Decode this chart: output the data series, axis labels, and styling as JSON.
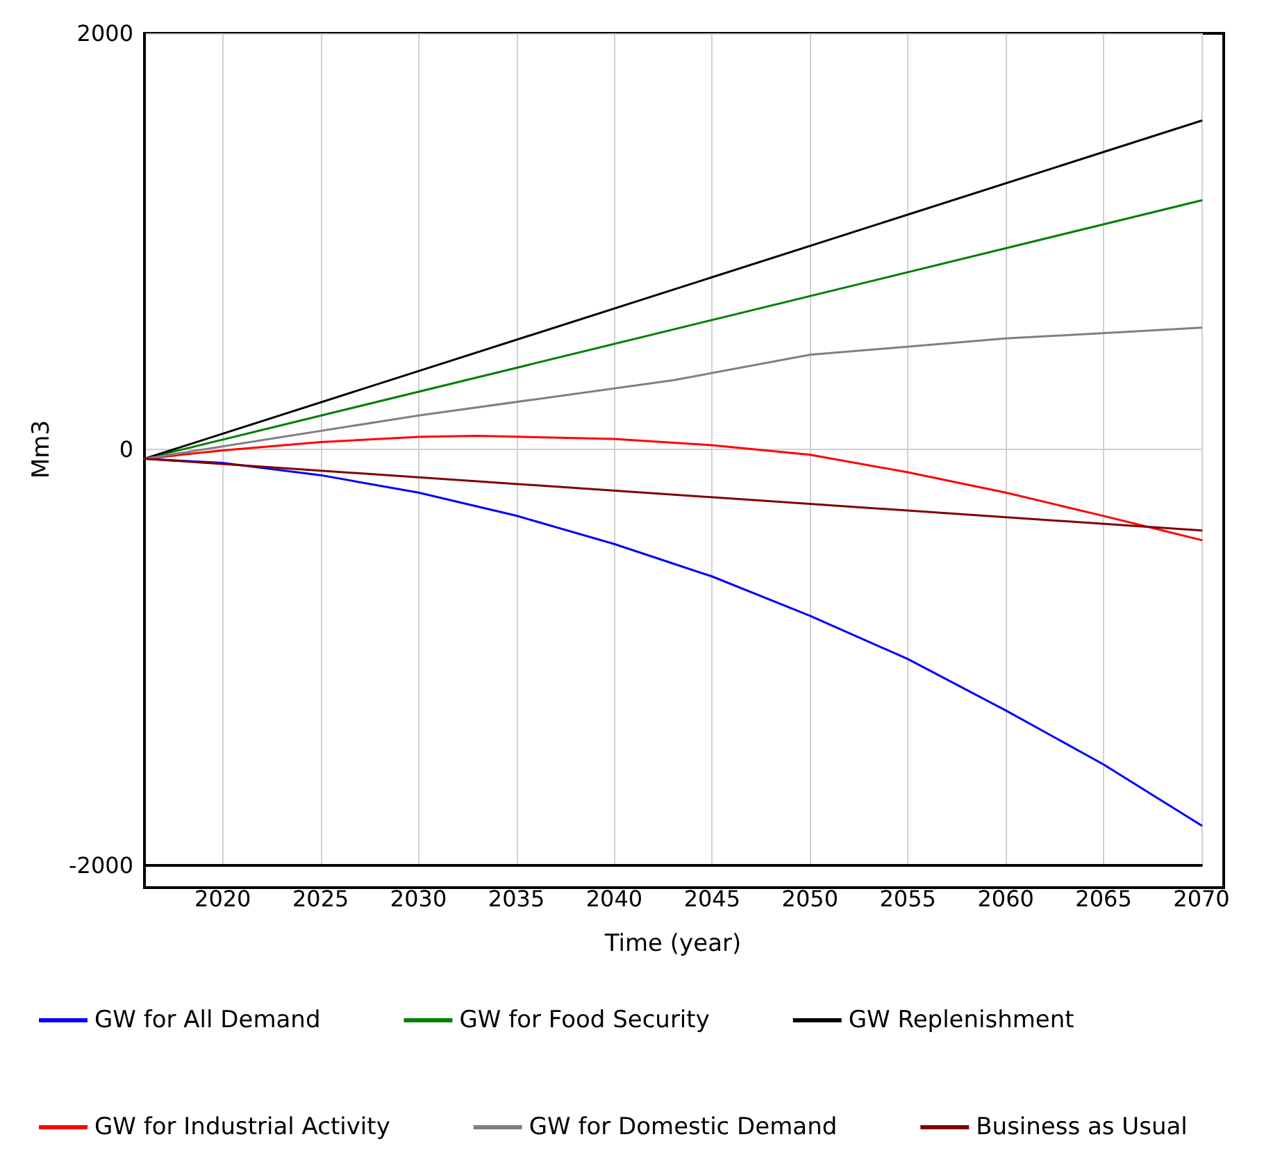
{
  "chart_data": {
    "type": "line",
    "xlabel": "Time (year)",
    "ylabel": "Mm3",
    "xlim": [
      2016,
      2070
    ],
    "xticks": [
      2020,
      2025,
      2030,
      2035,
      2040,
      2045,
      2050,
      2055,
      2060,
      2065,
      2070
    ],
    "ylim": [
      -2000,
      2000
    ],
    "yticks": [
      -2000,
      0,
      2000
    ],
    "grid": true,
    "legend": "bottom",
    "marker": "none",
    "line_style": "solid",
    "series": [
      {
        "name": "GW for All Demand",
        "color": "#0000ff",
        "x": [
          2016,
          2020,
          2025,
          2030,
          2035,
          2040,
          2045,
          2050,
          2055,
          2060,
          2065,
          2070
        ],
        "values": [
          -45,
          -65,
          -124,
          -208,
          -319,
          -455,
          -611,
          -800,
          -1008,
          -1255,
          -1515,
          -1808
        ]
      },
      {
        "name": "GW for Food Security",
        "color": "#008000",
        "x": [
          2016,
          2070
        ],
        "values": [
          -45,
          1197
        ]
      },
      {
        "name": "GW Replenishment",
        "color": "#000000",
        "x": [
          2016,
          2070
        ],
        "values": [
          -45,
          1580
        ]
      },
      {
        "name": "GW for Industrial Activity",
        "color": "#ff0000",
        "x": [
          2016,
          2020,
          2025,
          2030,
          2033,
          2040,
          2045,
          2050,
          2055,
          2060,
          2065,
          2070
        ],
        "values": [
          -45,
          -5,
          35,
          60,
          65,
          50,
          20,
          -26,
          -110,
          -208,
          -320,
          -436
        ]
      },
      {
        "name": "GW for Domestic Demand",
        "color": "#808080",
        "x": [
          2016,
          2030,
          2043,
          2050,
          2060,
          2070
        ],
        "values": [
          -45,
          163,
          332,
          455,
          533,
          585
        ]
      },
      {
        "name": "Business as Usual",
        "color": "#800000",
        "x": [
          2016,
          2070
        ],
        "values": [
          -45,
          -390
        ]
      }
    ]
  }
}
